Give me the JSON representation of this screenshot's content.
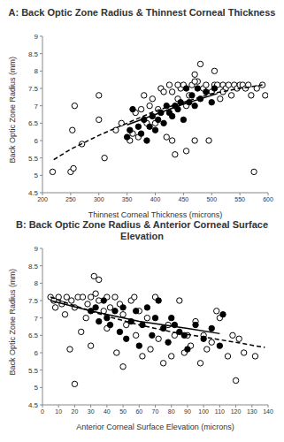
{
  "chart_data": [
    {
      "type": "scatter",
      "title": "A: Back Optic Zone Radius & Thinnest Corneal Thickness",
      "x_label": "Thinnest Corneal Thickness  (microns)",
      "y_label": "Back Optic Zone Radius (mm)",
      "xlim": [
        200,
        600
      ],
      "xticks": [
        200,
        250,
        300,
        350,
        400,
        450,
        500,
        550,
        600
      ],
      "ylim": [
        4.5,
        9
      ],
      "yticks": [
        4.5,
        5,
        5.5,
        6,
        6.5,
        7,
        7.5,
        8,
        8.5,
        9
      ],
      "grid": false,
      "series": [
        {
          "type": "scatter",
          "marker": "open_circle",
          "color": "#000000",
          "x": [
            218,
            250,
            255,
            253,
            257,
            270,
            300,
            300,
            310,
            330,
            340,
            355,
            360,
            365,
            370,
            375,
            380,
            385,
            390,
            395,
            400,
            405,
            410,
            415,
            420,
            425,
            430,
            430,
            435,
            440,
            445,
            450,
            455,
            455,
            460,
            465,
            470,
            470,
            475,
            480,
            485,
            490,
            495,
            500,
            505,
            510,
            515,
            520,
            525,
            530,
            535,
            540,
            545,
            550,
            555,
            560,
            565,
            570,
            575,
            580,
            590,
            595,
            505,
            470,
            440,
            520
          ],
          "values": [
            5.1,
            5.1,
            5.2,
            6.3,
            7.0,
            5.9,
            6.6,
            7.3,
            5.5,
            6.3,
            6.5,
            6.0,
            6.2,
            6.8,
            6.1,
            6.9,
            7.3,
            6.5,
            7.0,
            7.2,
            6.5,
            6.9,
            7.5,
            7.4,
            6.1,
            7.6,
            7.4,
            6.0,
            5.6,
            7.2,
            7.5,
            7.6,
            7.0,
            5.7,
            7.3,
            7.6,
            7.9,
            6.0,
            7.7,
            8.2,
            7.5,
            7.6,
            6.0,
            7.4,
            7.6,
            7.6,
            7.2,
            7.6,
            7.5,
            7.6,
            7.3,
            7.6,
            7.5,
            7.6,
            7.6,
            7.5,
            7.6,
            7.3,
            5.1,
            7.5,
            7.6,
            7.3,
            8.0,
            7.7,
            7.6,
            7.4
          ]
        },
        {
          "type": "scatter",
          "marker": "circle",
          "color": "#000000",
          "x": [
            350,
            355,
            360,
            370,
            375,
            380,
            385,
            390,
            395,
            400,
            405,
            410,
            415,
            420,
            425,
            430,
            435,
            440,
            445,
            450,
            455,
            460,
            465,
            470,
            475,
            480,
            490,
            500,
            505
          ],
          "values": [
            6.1,
            6.3,
            6.9,
            6.4,
            6.2,
            6.6,
            6.0,
            6.4,
            6.7,
            6.3,
            6.6,
            6.8,
            6.5,
            7.0,
            6.8,
            6.7,
            7.0,
            6.9,
            7.1,
            6.6,
            7.5,
            7.1,
            7.3,
            7.0,
            7.5,
            7.2,
            7.4,
            7.1,
            7.5
          ]
        },
        {
          "type": "line",
          "line_style": "dashed",
          "color": "#000000",
          "x": [
            220,
            250,
            300,
            350,
            400,
            450,
            500,
            550,
            590
          ],
          "values": [
            5.45,
            5.75,
            6.15,
            6.5,
            6.85,
            7.1,
            7.35,
            7.5,
            7.6
          ]
        },
        {
          "type": "line",
          "line_style": "solid",
          "color": "#000000",
          "x": [
            350,
            400,
            450,
            510
          ],
          "values": [
            6.45,
            6.75,
            7.05,
            7.35
          ]
        }
      ]
    },
    {
      "type": "scatter",
      "title": "B: Back Optic Zone Radius & Anterior Corneal Surface Elevation",
      "x_label": "Anterior Corneal Surface Elevation (microns)",
      "y_label": "Back Optic Zone Radius (mm)",
      "xlim": [
        0,
        140
      ],
      "xticks": [
        0,
        10,
        20,
        30,
        40,
        50,
        60,
        70,
        80,
        90,
        100,
        110,
        120,
        130,
        140
      ],
      "ylim": [
        4.5,
        9
      ],
      "yticks": [
        4.5,
        5,
        5.5,
        6,
        6.5,
        7,
        7.5,
        8,
        8.5,
        9
      ],
      "grid": false,
      "series": [
        {
          "type": "scatter",
          "marker": "open_circle",
          "color": "#000000",
          "x": [
            5,
            7,
            8,
            10,
            12,
            14,
            15,
            17,
            18,
            20,
            20,
            22,
            25,
            27,
            28,
            30,
            30,
            32,
            33,
            35,
            35,
            38,
            40,
            40,
            42,
            45,
            46,
            48,
            50,
            50,
            52,
            55,
            57,
            58,
            60,
            62,
            65,
            67,
            70,
            72,
            75,
            78,
            80,
            82,
            85,
            88,
            90,
            92,
            95,
            98,
            100,
            102,
            105,
            108,
            110,
            115,
            118,
            120,
            122,
            125,
            132,
            24
          ],
          "values": [
            7.6,
            7.5,
            7.3,
            7.6,
            7.4,
            7.1,
            7.6,
            6.1,
            7.5,
            7.3,
            5.1,
            7.6,
            7.6,
            7.0,
            7.4,
            7.6,
            6.2,
            8.2,
            7.7,
            8.1,
            7.5,
            7.2,
            7.6,
            6.7,
            7.3,
            7.6,
            6.0,
            7.4,
            7.1,
            5.6,
            6.8,
            7.5,
            7.6,
            6.5,
            7.2,
            5.9,
            7.0,
            6.1,
            7.6,
            6.4,
            5.7,
            6.8,
            5.9,
            6.5,
            7.5,
            6.0,
            6.5,
            6.2,
            6.9,
            5.7,
            6.5,
            6.1,
            6.3,
            7.2,
            7.0,
            5.9,
            6.5,
            5.2,
            6.4,
            6.0,
            5.9,
            6.6
          ]
        },
        {
          "type": "scatter",
          "marker": "circle",
          "color": "#000000",
          "x": [
            30,
            33,
            35,
            38,
            40,
            42,
            45,
            48,
            50,
            52,
            55,
            58,
            60,
            62,
            65,
            68,
            70,
            72,
            75,
            78,
            80,
            82,
            85,
            88,
            90,
            95,
            100,
            105,
            110,
            112
          ],
          "values": [
            7.2,
            7.3,
            6.9,
            7.5,
            7.0,
            6.8,
            7.2,
            6.6,
            7.3,
            6.4,
            6.9,
            7.2,
            6.2,
            6.8,
            7.3,
            6.5,
            7.0,
            7.5,
            6.7,
            6.3,
            7.0,
            6.8,
            6.6,
            6.5,
            6.1,
            6.8,
            6.4,
            6.7,
            6.2,
            7.1
          ]
        },
        {
          "type": "line",
          "line_style": "dashed",
          "color": "#000000",
          "x": [
            5,
            20,
            40,
            60,
            80,
            100,
            120,
            138
          ],
          "values": [
            7.6,
            7.35,
            7.05,
            6.8,
            6.6,
            6.45,
            6.3,
            6.15
          ]
        },
        {
          "type": "line",
          "line_style": "solid",
          "color": "#000000",
          "x": [
            5,
            30,
            60,
            90,
            110
          ],
          "values": [
            7.5,
            7.2,
            6.9,
            6.7,
            6.55
          ]
        }
      ]
    }
  ]
}
